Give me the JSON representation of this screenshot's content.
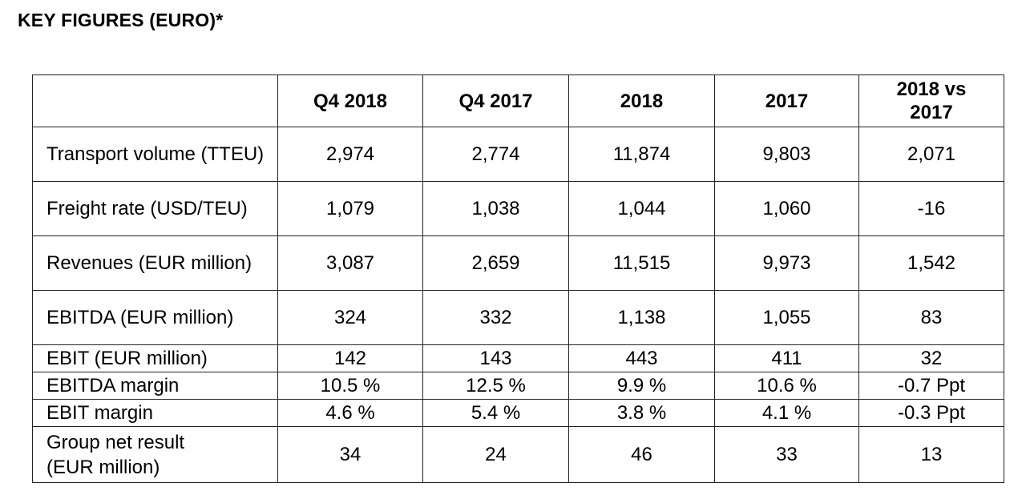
{
  "title": "KEY FIGURES (EURO)*",
  "table": {
    "headers": [
      "",
      "Q4 2018",
      "Q4 2017",
      "2018",
      "2017",
      "2018 vs 2017"
    ],
    "rows": [
      {
        "label": "Transport volume (TTEU)",
        "values": [
          "2,974",
          "2,774",
          "11,874",
          "9,803",
          "2,071"
        ]
      },
      {
        "label": "Freight rate (USD/TEU)",
        "values": [
          "1,079",
          "1,038",
          "1,044",
          "1,060",
          "-16"
        ]
      },
      {
        "label": "Revenues (EUR million)",
        "values": [
          "3,087",
          "2,659",
          "11,515",
          "9,973",
          "1,542"
        ]
      },
      {
        "label": "EBITDA (EUR million)",
        "values": [
          "324",
          "332",
          "1,138",
          "1,055",
          "83"
        ]
      },
      {
        "label": "EBIT (EUR million)",
        "values": [
          "142",
          "143",
          "443",
          "411",
          "32"
        ]
      },
      {
        "label": "EBITDA margin",
        "values": [
          "10.5 %",
          "12.5 %",
          "9.9 %",
          "10.6 %",
          "-0.7 Ppt"
        ]
      },
      {
        "label": "EBIT margin",
        "values": [
          "4.6 %",
          "5.4 %",
          "3.8 %",
          "4.1 %",
          "-0.3 Ppt"
        ]
      },
      {
        "label": "Group net result (EUR million)",
        "values": [
          "34",
          "24",
          "46",
          "33",
          "13"
        ]
      }
    ]
  }
}
